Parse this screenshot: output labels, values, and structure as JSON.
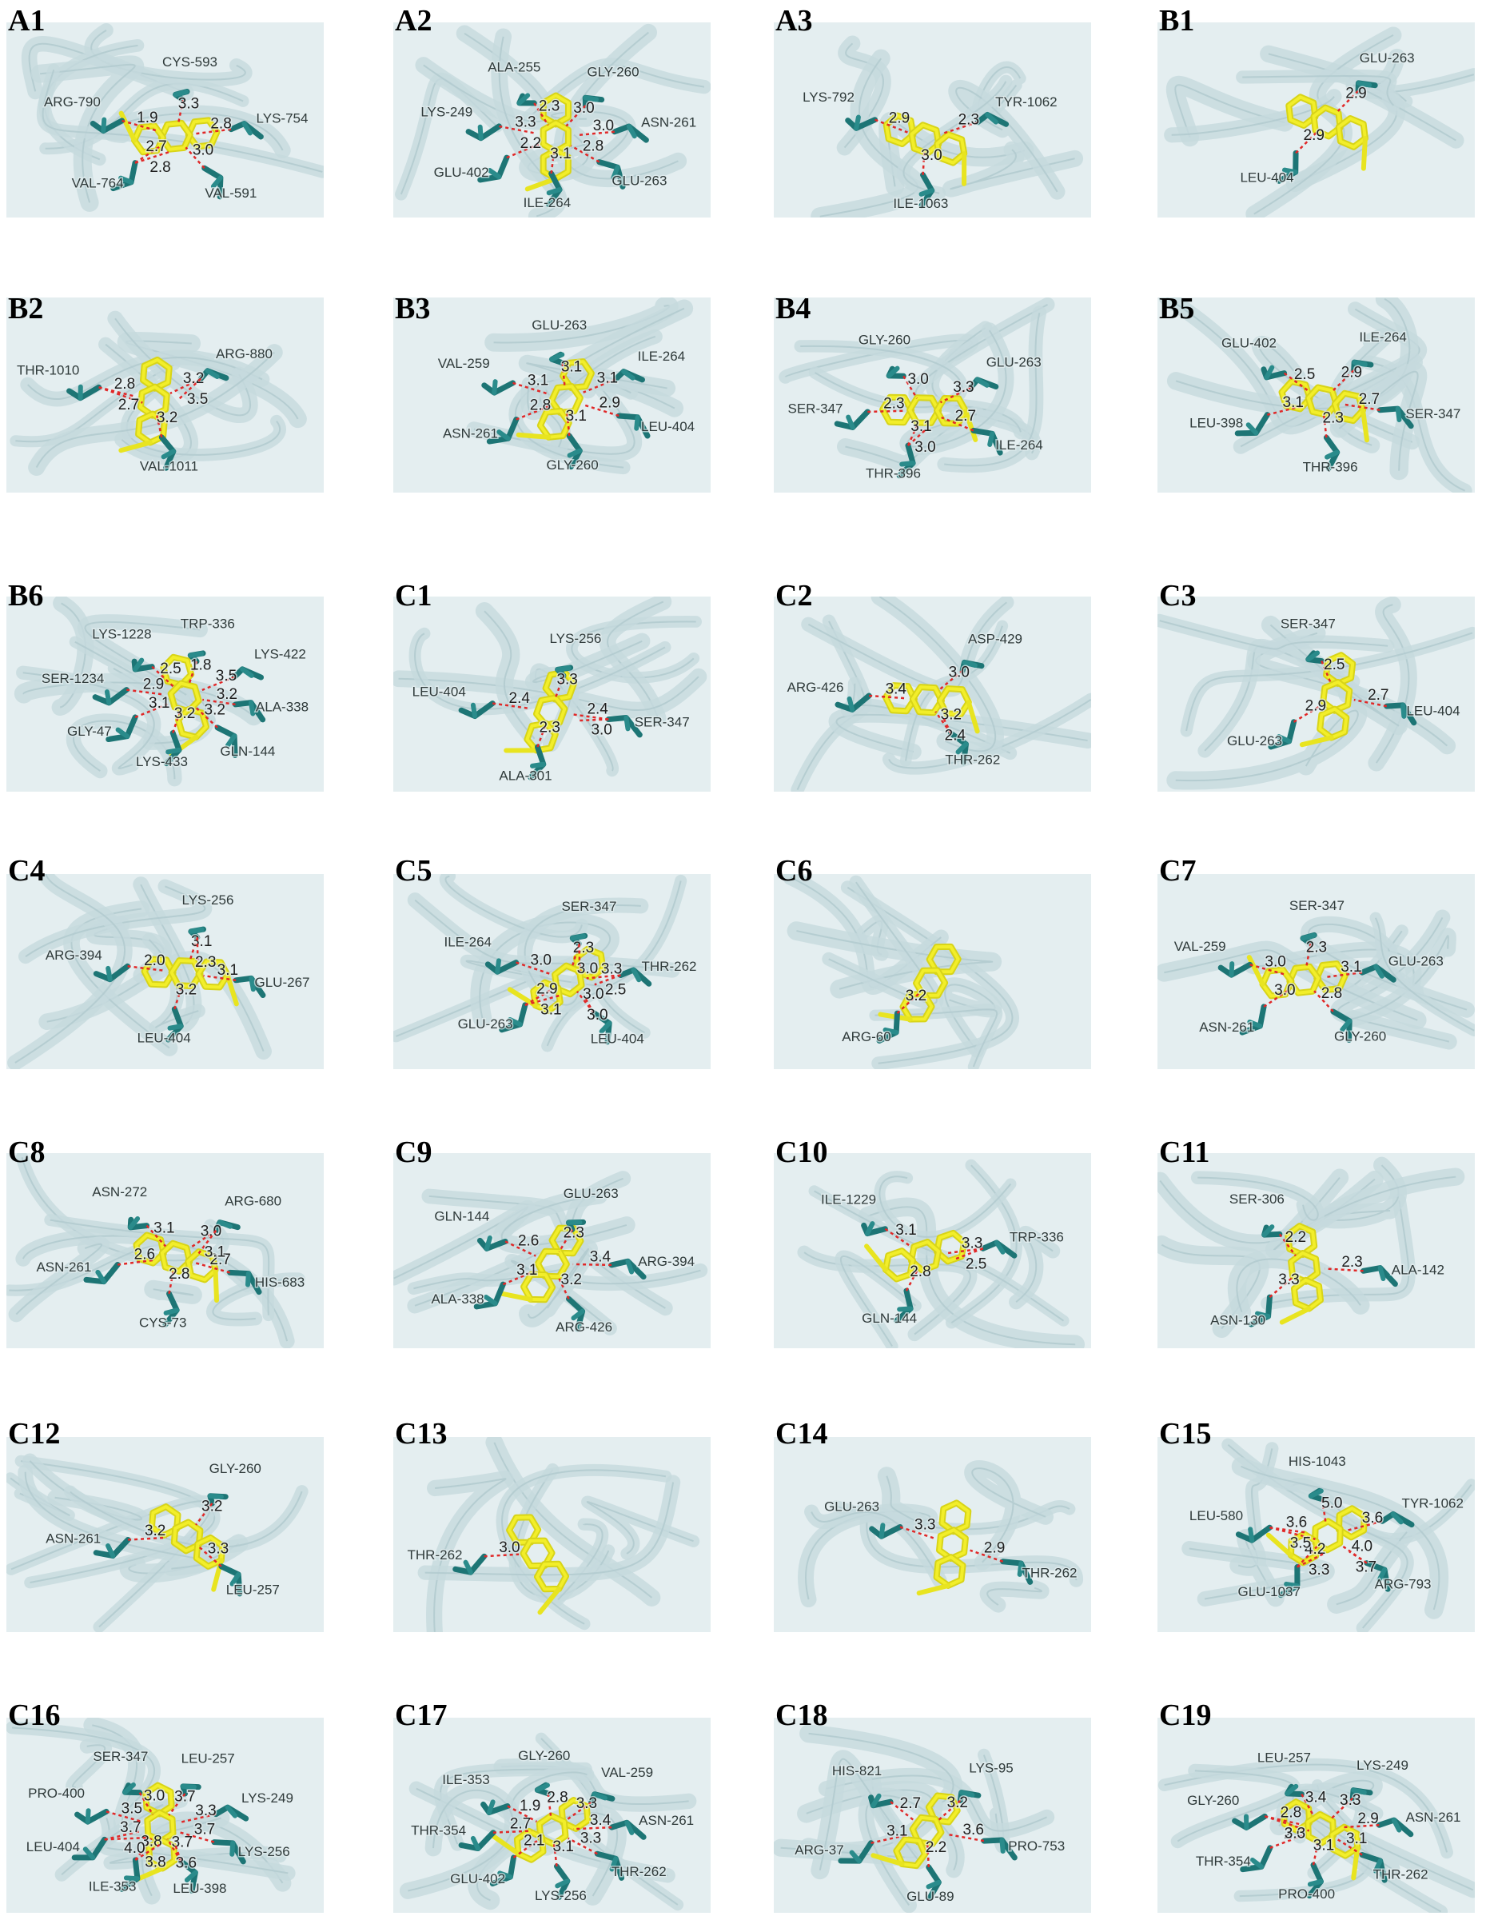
{
  "panels": [
    {
      "label": "A1",
      "residues": [
        "VAL-764",
        "ARG-790",
        "CYS-593",
        "LYS-754",
        "VAL-591"
      ],
      "distances": [
        "2.7",
        "1.9",
        "3.3",
        "2.8",
        "3.0",
        "2.8"
      ]
    },
    {
      "label": "A2",
      "residues": [
        "GLY-260",
        "ASN-261",
        "GLU-263",
        "ILE-264",
        "GLU-402",
        "LYS-249",
        "ALA-255"
      ],
      "distances": [
        "3.0",
        "3.0",
        "2.8",
        "3.1",
        "2.2",
        "3.3",
        "2.3"
      ]
    },
    {
      "label": "A3",
      "residues": [
        "TYR-1062",
        "ILE-1063",
        "LYS-792"
      ],
      "distances": [
        "2.3",
        "3.0",
        "2.9"
      ]
    },
    {
      "label": "B1",
      "residues": [
        "LEU-404",
        "GLU-263"
      ],
      "distances": [
        "2.9",
        "2.9"
      ]
    },
    {
      "label": "B2",
      "residues": [
        "THR-1010",
        "ARG-880",
        "VAL-1011"
      ],
      "distances": [
        "2.8",
        "3.2",
        "3.2",
        "2.7",
        "3.5"
      ]
    },
    {
      "label": "B3",
      "residues": [
        "GLY-260",
        "ASN-261",
        "VAL-259",
        "GLU-263",
        "ILE-264",
        "LEU-404"
      ],
      "distances": [
        "3.1",
        "2.8",
        "3.1",
        "3.1",
        "3.1",
        "2.9"
      ]
    },
    {
      "label": "B4",
      "residues": [
        "THR-396",
        "SER-347",
        "GLY-260",
        "GLU-263",
        "ILE-264"
      ],
      "distances": [
        "3.1",
        "2.3",
        "3.0",
        "3.3",
        "2.7",
        "3.0"
      ]
    },
    {
      "label": "B5",
      "residues": [
        "THR-396",
        "LEU-398",
        "GLU-402",
        "ILE-264",
        "SER-347"
      ],
      "distances": [
        "2.3",
        "3.1",
        "2.5",
        "2.9",
        "2.7"
      ]
    },
    {
      "label": "B6",
      "residues": [
        "TRP-336",
        "LYS-422",
        "ALA-338",
        "GLN-144",
        "LYS-433",
        "GLY-47",
        "SER-1234",
        "LYS-1228"
      ],
      "distances": [
        "1.8",
        "3.5",
        "3.2",
        "3.2",
        "3.2",
        "3.1",
        "2.9",
        "2.5"
      ]
    },
    {
      "label": "C1",
      "residues": [
        "SER-347",
        "ALA-301",
        "LEU-404",
        "LYS-256"
      ],
      "distances": [
        "2.4",
        "2.3",
        "2.4",
        "3.3",
        "3.0"
      ]
    },
    {
      "label": "C2",
      "residues": [
        "THR-262",
        "ARG-426",
        "ASP-429"
      ],
      "distances": [
        "3.2",
        "3.4",
        "3.0",
        "2.4"
      ]
    },
    {
      "label": "C3",
      "residues": [
        "SER-347",
        "LEU-404",
        "GLU-263"
      ],
      "distances": [
        "2.5",
        "2.7",
        "2.9"
      ]
    },
    {
      "label": "C4",
      "residues": [
        "LYS-256",
        "GLU-267",
        "LEU-404",
        "ARG-394"
      ],
      "distances": [
        "3.1",
        "3.1",
        "3.2",
        "2.0",
        "2.3"
      ]
    },
    {
      "label": "C5",
      "residues": [
        "SER-347",
        "THR-262",
        "LEU-404",
        "GLU-263",
        "ILE-264"
      ],
      "distances": [
        "2.3",
        "3.3",
        "3.0",
        "2.9",
        "3.0",
        "3.0",
        "2.5",
        "3.0",
        "3.1"
      ]
    },
    {
      "label": "C6",
      "residues": [
        "ARG-60"
      ],
      "distances": [
        "3.2"
      ]
    },
    {
      "label": "C7",
      "residues": [
        "GLY-260",
        "ASN-261",
        "VAL-259",
        "SER-347",
        "GLU-263"
      ],
      "distances": [
        "2.8",
        "3.0",
        "3.0",
        "2.3",
        "3.1"
      ]
    },
    {
      "label": "C8",
      "residues": [
        "ARG-680",
        "HIS-683",
        "CYS-73",
        "ASN-261",
        "ASN-272"
      ],
      "distances": [
        "3.0",
        "2.7",
        "2.8",
        "2.6",
        "3.1",
        "3.1"
      ]
    },
    {
      "label": "C9",
      "residues": [
        "ALA-338",
        "GLN-144",
        "GLU-263",
        "ARG-394",
        "ARG-426"
      ],
      "distances": [
        "3.1",
        "2.6",
        "2.3",
        "3.4",
        "3.2"
      ]
    },
    {
      "label": "C10",
      "residues": [
        "TRP-336",
        "GLN-144",
        "ILE-1229"
      ],
      "distances": [
        "3.3",
        "2.8",
        "3.1",
        "2.5"
      ]
    },
    {
      "label": "C11",
      "residues": [
        "ASN-130",
        "SER-306",
        "ALA-142"
      ],
      "distances": [
        "3.3",
        "2.2",
        "2.3"
      ]
    },
    {
      "label": "C12",
      "residues": [
        "GLY-260",
        "LEU-257",
        "ASN-261"
      ],
      "distances": [
        "3.2",
        "3.3",
        "3.2"
      ]
    },
    {
      "label": "C13",
      "residues": [
        "THR-262"
      ],
      "distances": [
        "3.0"
      ]
    },
    {
      "label": "C14",
      "residues": [
        "THR-262",
        "GLU-263"
      ],
      "distances": [
        "2.9",
        "3.3"
      ]
    },
    {
      "label": "C15",
      "residues": [
        "ARG-793",
        "GLU-1037",
        "LEU-580",
        "HIS-1043",
        "TYR-1062"
      ],
      "distances": [
        "4.0",
        "4.2",
        "3.6",
        "5.0",
        "3.6",
        "3.7",
        "3.3",
        "3.5"
      ]
    },
    {
      "label": "C16",
      "residues": [
        "LEU-398",
        "ILE-353",
        "LEU-404",
        "PRO-400",
        "SER-347",
        "LEU-257",
        "LYS-249",
        "LYS-256"
      ],
      "distances": [
        "3.7",
        "3.8",
        "3.7",
        "3.5",
        "3.0",
        "3.7",
        "3.3",
        "3.7",
        "3.6",
        "3.8",
        "4.0"
      ]
    },
    {
      "label": "C17",
      "residues": [
        "GLY-260",
        "VAL-259",
        "ASN-261",
        "THR-262",
        "LYS-256",
        "GLU-402",
        "THR-354",
        "ILE-353"
      ],
      "distances": [
        "2.8",
        "3.3",
        "3.4",
        "3.3",
        "3.1",
        "2.1",
        "2.7",
        "1.9"
      ]
    },
    {
      "label": "C18",
      "residues": [
        "GLU-89",
        "ARG-37",
        "HIS-821",
        "LYS-95",
        "PRO-753"
      ],
      "distances": [
        "2.2",
        "3.1",
        "2.7",
        "3.2",
        "3.6"
      ]
    },
    {
      "label": "C19",
      "residues": [
        "GLY-260",
        "LEU-257",
        "LYS-249",
        "ASN-261",
        "THR-262",
        "PRO-400",
        "THR-354"
      ],
      "distances": [
        "2.8",
        "3.4",
        "3.3",
        "2.9",
        "3.1",
        "3.1",
        "2.0",
        "3.3"
      ]
    }
  ]
}
